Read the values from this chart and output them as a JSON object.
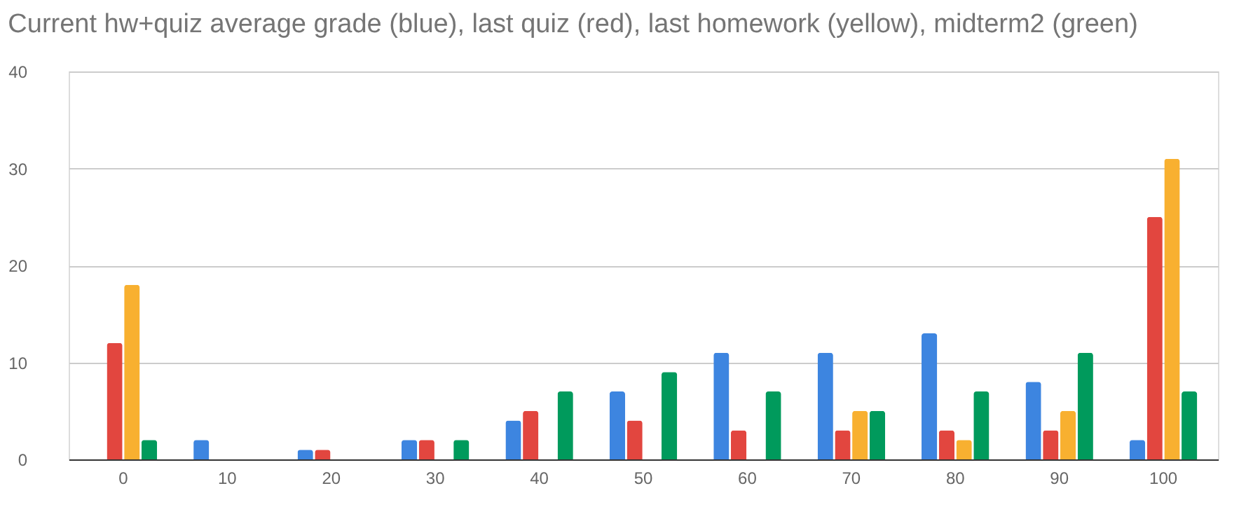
{
  "chart_data": {
    "type": "bar",
    "title": "Current hw+quiz average grade (blue), last quiz (red), last homework (yellow), midterm2 (green)",
    "categories": [
      "0",
      "10",
      "20",
      "30",
      "40",
      "50",
      "60",
      "70",
      "80",
      "90",
      "100"
    ],
    "series": [
      {
        "color": "#3d85e0",
        "values": [
          0,
          2,
          1,
          2,
          4,
          7,
          11,
          11,
          13,
          8,
          2
        ]
      },
      {
        "color": "#e2463f",
        "values": [
          12,
          0,
          1,
          2,
          5,
          4,
          3,
          3,
          3,
          3,
          25
        ]
      },
      {
        "color": "#f8b030",
        "values": [
          18,
          0,
          0,
          0,
          0,
          0,
          0,
          5,
          2,
          5,
          31
        ]
      },
      {
        "color": "#009a5c",
        "values": [
          2,
          0,
          0,
          2,
          7,
          9,
          7,
          5,
          7,
          11,
          7
        ]
      }
    ],
    "ylim": [
      0,
      40
    ],
    "yticks": [
      0,
      10,
      20,
      30,
      40
    ],
    "grid": "y",
    "legend": false
  }
}
